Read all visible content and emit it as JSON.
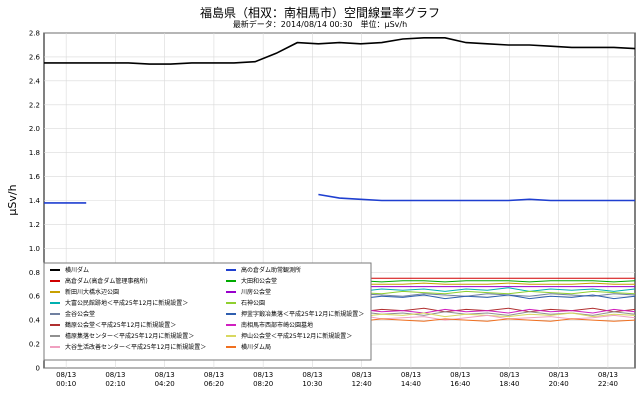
{
  "chart_data": {
    "type": "line",
    "title": "福島県（相双：南相馬市）空間線量率グラフ",
    "subtitle": "最新データ：2014/08/14 00:30　単位：μSv/h",
    "ylabel": "μSv/h",
    "ylim": [
      0,
      2.8
    ],
    "yticks": [
      "0",
      "0.2",
      "0.4",
      "0.6",
      "0.8",
      "1.0",
      "1.2",
      "1.4",
      "1.6",
      "1.8",
      "2.0",
      "2.2",
      "2.4",
      "2.6",
      "2.8"
    ],
    "x": [
      0,
      1,
      2,
      3,
      4,
      5,
      6,
      7,
      8,
      9,
      10,
      11,
      12,
      13,
      14,
      15,
      16,
      17,
      18,
      19,
      20,
      21,
      22,
      23,
      24,
      25,
      26,
      27,
      28
    ],
    "xticks": [
      {
        "date": "08/13",
        "time": "00:10"
      },
      {
        "date": "08/13",
        "time": "02:10"
      },
      {
        "date": "08/13",
        "time": "04:20"
      },
      {
        "date": "08/13",
        "time": "06:20"
      },
      {
        "date": "08/13",
        "time": "08:20"
      },
      {
        "date": "08/13",
        "time": "10:30"
      },
      {
        "date": "08/13",
        "time": "12:40"
      },
      {
        "date": "08/13",
        "time": "14:40"
      },
      {
        "date": "08/13",
        "time": "16:40"
      },
      {
        "date": "08/13",
        "time": "18:40"
      },
      {
        "date": "08/13",
        "time": "20:40"
      },
      {
        "date": "08/13",
        "time": "22:40"
      }
    ],
    "grid": true,
    "legend_position": "bottom-left",
    "series": [
      {
        "name": "横川ダム",
        "color": "#000000",
        "values": [
          2.55,
          2.55,
          2.55,
          2.55,
          2.55,
          2.54,
          2.54,
          2.55,
          2.55,
          2.55,
          2.56,
          2.63,
          2.72,
          2.71,
          2.72,
          2.71,
          2.72,
          2.75,
          2.76,
          2.76,
          2.72,
          2.71,
          2.7,
          2.7,
          2.69,
          2.68,
          2.68,
          2.68,
          2.67
        ]
      },
      {
        "name": "高の倉ダム助常観測所",
        "color": "#1f3fd0",
        "values": [
          1.38,
          1.38,
          1.38,
          null,
          null,
          null,
          null,
          null,
          null,
          null,
          null,
          null,
          null,
          1.45,
          1.42,
          1.41,
          1.4,
          1.4,
          1.4,
          1.4,
          1.4,
          1.4,
          1.4,
          1.41,
          1.4,
          1.4,
          1.4,
          1.4,
          1.4
        ]
      },
      {
        "name": "高倉ダム(高倉ダム管理事務所)",
        "color": "#d00000",
        "values": [
          0.75,
          0.75,
          0.75,
          0.75,
          0.75,
          0.75,
          0.75,
          0.75,
          0.75,
          0.75,
          0.75,
          0.75,
          0.75,
          0.75,
          0.75,
          0.75,
          0.75,
          0.75,
          0.75,
          0.75,
          0.75,
          0.75,
          0.75,
          0.75,
          0.75,
          0.75,
          0.75,
          0.75,
          0.75
        ]
      },
      {
        "name": "大田和公会堂",
        "color": "#00aa00",
        "values": [
          0.73,
          0.73,
          0.73,
          0.72,
          0.73,
          0.73,
          0.72,
          0.73,
          0.73,
          0.72,
          0.73,
          0.73,
          0.73,
          0.72,
          0.73,
          0.73,
          0.72,
          0.73,
          0.73,
          0.72,
          0.73,
          0.73,
          0.73,
          0.72,
          0.73,
          0.73,
          0.73,
          0.72,
          0.73
        ]
      },
      {
        "name": "新田川大橋水辺公園",
        "color": "#c8a000",
        "values": [
          0.7,
          0.7,
          0.71,
          0.7,
          0.7,
          0.7,
          0.71,
          0.7,
          0.7,
          0.7,
          0.71,
          0.7,
          0.7,
          0.7,
          0.71,
          0.7,
          0.7,
          0.7,
          0.71,
          0.7,
          0.7,
          0.7,
          0.71,
          0.7,
          0.7,
          0.7,
          0.71,
          0.7,
          0.7
        ]
      },
      {
        "name": "川房公会堂",
        "color": "#9900cc",
        "values": [
          0.68,
          0.68,
          0.68,
          0.68,
          0.68,
          0.68,
          0.68,
          0.68,
          0.68,
          0.68,
          0.68,
          0.68,
          0.68,
          0.68,
          0.68,
          0.68,
          0.68,
          0.68,
          0.68,
          0.68,
          0.68,
          0.68,
          0.68,
          0.68,
          0.68,
          0.68,
          0.68,
          0.68,
          0.68
        ]
      },
      {
        "name": "大富公民館跡地＜平成25年12月に新規設置＞",
        "color": "#00b0b0",
        "values": [
          0.66,
          0.65,
          0.66,
          0.64,
          0.66,
          0.65,
          0.67,
          0.64,
          0.66,
          0.65,
          0.66,
          0.64,
          0.66,
          0.65,
          0.67,
          0.64,
          0.66,
          0.65,
          0.66,
          0.64,
          0.66,
          0.65,
          0.67,
          0.64,
          0.66,
          0.65,
          0.66,
          0.64,
          0.66
        ]
      },
      {
        "name": "石神公園",
        "color": "#8fcf2f",
        "values": [
          0.63,
          0.62,
          0.64,
          0.63,
          0.62,
          0.64,
          0.63,
          0.62,
          0.64,
          0.63,
          0.62,
          0.64,
          0.63,
          0.62,
          0.64,
          0.63,
          0.62,
          0.64,
          0.63,
          0.62,
          0.64,
          0.63,
          0.62,
          0.64,
          0.63,
          0.62,
          0.64,
          0.63,
          0.62
        ]
      },
      {
        "name": "金谷公会堂",
        "color": "#7080a0",
        "values": [
          0.61,
          0.62,
          0.6,
          0.62,
          0.61,
          0.6,
          0.62,
          0.61,
          0.6,
          0.62,
          0.61,
          0.6,
          0.62,
          0.61,
          0.6,
          0.62,
          0.61,
          0.6,
          0.62,
          0.61,
          0.6,
          0.62,
          0.61,
          0.6,
          0.62,
          0.61,
          0.6,
          0.62,
          0.61
        ]
      },
      {
        "name": "押釜字鍛冶集落＜平成25年12月に新規設置＞",
        "color": "#2f5faf",
        "values": [
          0.6,
          0.59,
          0.61,
          0.58,
          0.6,
          0.59,
          0.61,
          0.58,
          0.6,
          0.59,
          0.61,
          0.58,
          0.6,
          0.59,
          0.61,
          0.58,
          0.6,
          0.59,
          0.61,
          0.58,
          0.6,
          0.59,
          0.61,
          0.58,
          0.6,
          0.59,
          0.61,
          0.58,
          0.6
        ]
      },
      {
        "name": "鶴原公会堂＜平成25年12月に新規設置＞",
        "color": "#b03030",
        "values": [
          0.49,
          0.48,
          0.5,
          0.47,
          0.49,
          0.48,
          0.5,
          0.47,
          0.49,
          0.48,
          0.5,
          0.47,
          0.49,
          0.48,
          0.5,
          0.47,
          0.49,
          0.48,
          0.5,
          0.47,
          0.49,
          0.48,
          0.5,
          0.47,
          0.49,
          0.48,
          0.5,
          0.47,
          0.49
        ]
      },
      {
        "name": "南相馬市西部市崎公園墓地",
        "color": "#d020c0",
        "values": [
          0.47,
          0.48,
          0.46,
          0.49,
          0.47,
          0.48,
          0.46,
          0.49,
          0.47,
          0.48,
          0.46,
          0.49,
          0.47,
          0.48,
          0.46,
          0.49,
          0.47,
          0.48,
          0.46,
          0.49,
          0.47,
          0.48,
          0.46,
          0.49,
          0.47,
          0.48,
          0.46,
          0.49,
          0.47
        ]
      },
      {
        "name": "橲原集落センター＜平成25年12月に新規設置＞",
        "color": "#909090",
        "values": [
          0.45,
          0.46,
          0.44,
          0.47,
          0.45,
          0.46,
          0.44,
          0.47,
          0.45,
          0.46,
          0.44,
          0.47,
          0.45,
          0.46,
          0.44,
          0.47,
          0.45,
          0.46,
          0.44,
          0.47,
          0.45,
          0.46,
          0.44,
          0.47,
          0.45,
          0.46,
          0.44,
          0.47,
          0.45
        ]
      },
      {
        "name": "押山公会堂＜平成25年12月に新規設置＞",
        "color": "#d8d860",
        "values": [
          0.44,
          0.45,
          0.43,
          0.44,
          0.46,
          0.43,
          0.45,
          0.44,
          0.43,
          0.45,
          0.44,
          0.46,
          0.43,
          0.45,
          0.44,
          0.43,
          0.45,
          0.44,
          0.46,
          0.43,
          0.45,
          0.44,
          0.43,
          0.45,
          0.44,
          0.46,
          0.43,
          0.45,
          0.44
        ]
      },
      {
        "name": "大谷生活改善センター＜平成25年12月に新規設置＞",
        "color": "#f0a0c0",
        "values": [
          0.42,
          0.43,
          0.41,
          0.44,
          0.42,
          0.4,
          0.43,
          0.41,
          0.42,
          0.44,
          0.4,
          0.42,
          0.43,
          0.41,
          0.42,
          0.44,
          0.41,
          0.42,
          0.43,
          0.4,
          0.42,
          0.44,
          0.41,
          0.42,
          0.43,
          0.41,
          0.42,
          0.44,
          0.42
        ]
      },
      {
        "name": "横川ダム局",
        "color": "#f07020",
        "values": [
          0.4,
          0.41,
          0.4,
          0.39,
          0.41,
          0.4,
          0.39,
          0.41,
          0.4,
          0.39,
          0.41,
          0.4,
          0.39,
          0.41,
          0.4,
          0.39,
          0.41,
          0.4,
          0.39,
          0.41,
          0.4,
          0.39,
          0.41,
          0.4,
          0.39,
          0.41,
          0.4,
          0.39,
          0.4
        ]
      }
    ]
  }
}
